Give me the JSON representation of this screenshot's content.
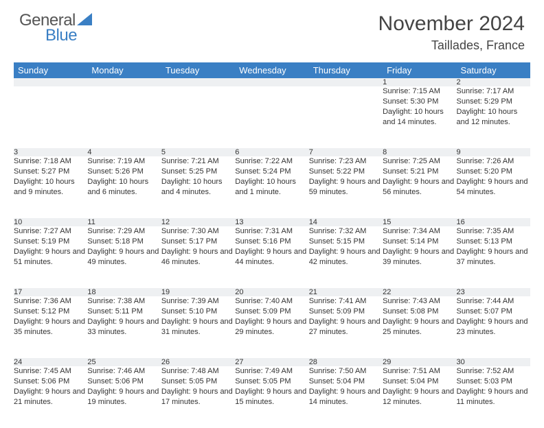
{
  "brand": {
    "part1": "General",
    "part2": "Blue"
  },
  "title": "November 2024",
  "subtitle": "Taillades, France",
  "colors": {
    "header_bg": "#3a7fc4",
    "header_fg": "#ffffff",
    "daynum_bg": "#eef0f2",
    "text": "#333333",
    "background": "#ffffff"
  },
  "day_headers": [
    "Sunday",
    "Monday",
    "Tuesday",
    "Wednesday",
    "Thursday",
    "Friday",
    "Saturday"
  ],
  "weeks": [
    [
      null,
      null,
      null,
      null,
      null,
      {
        "n": "1",
        "sr": "Sunrise: 7:15 AM",
        "ss": "Sunset: 5:30 PM",
        "dl": "Daylight: 10 hours and 14 minutes."
      },
      {
        "n": "2",
        "sr": "Sunrise: 7:17 AM",
        "ss": "Sunset: 5:29 PM",
        "dl": "Daylight: 10 hours and 12 minutes."
      }
    ],
    [
      {
        "n": "3",
        "sr": "Sunrise: 7:18 AM",
        "ss": "Sunset: 5:27 PM",
        "dl": "Daylight: 10 hours and 9 minutes."
      },
      {
        "n": "4",
        "sr": "Sunrise: 7:19 AM",
        "ss": "Sunset: 5:26 PM",
        "dl": "Daylight: 10 hours and 6 minutes."
      },
      {
        "n": "5",
        "sr": "Sunrise: 7:21 AM",
        "ss": "Sunset: 5:25 PM",
        "dl": "Daylight: 10 hours and 4 minutes."
      },
      {
        "n": "6",
        "sr": "Sunrise: 7:22 AM",
        "ss": "Sunset: 5:24 PM",
        "dl": "Daylight: 10 hours and 1 minute."
      },
      {
        "n": "7",
        "sr": "Sunrise: 7:23 AM",
        "ss": "Sunset: 5:22 PM",
        "dl": "Daylight: 9 hours and 59 minutes."
      },
      {
        "n": "8",
        "sr": "Sunrise: 7:25 AM",
        "ss": "Sunset: 5:21 PM",
        "dl": "Daylight: 9 hours and 56 minutes."
      },
      {
        "n": "9",
        "sr": "Sunrise: 7:26 AM",
        "ss": "Sunset: 5:20 PM",
        "dl": "Daylight: 9 hours and 54 minutes."
      }
    ],
    [
      {
        "n": "10",
        "sr": "Sunrise: 7:27 AM",
        "ss": "Sunset: 5:19 PM",
        "dl": "Daylight: 9 hours and 51 minutes."
      },
      {
        "n": "11",
        "sr": "Sunrise: 7:29 AM",
        "ss": "Sunset: 5:18 PM",
        "dl": "Daylight: 9 hours and 49 minutes."
      },
      {
        "n": "12",
        "sr": "Sunrise: 7:30 AM",
        "ss": "Sunset: 5:17 PM",
        "dl": "Daylight: 9 hours and 46 minutes."
      },
      {
        "n": "13",
        "sr": "Sunrise: 7:31 AM",
        "ss": "Sunset: 5:16 PM",
        "dl": "Daylight: 9 hours and 44 minutes."
      },
      {
        "n": "14",
        "sr": "Sunrise: 7:32 AM",
        "ss": "Sunset: 5:15 PM",
        "dl": "Daylight: 9 hours and 42 minutes."
      },
      {
        "n": "15",
        "sr": "Sunrise: 7:34 AM",
        "ss": "Sunset: 5:14 PM",
        "dl": "Daylight: 9 hours and 39 minutes."
      },
      {
        "n": "16",
        "sr": "Sunrise: 7:35 AM",
        "ss": "Sunset: 5:13 PM",
        "dl": "Daylight: 9 hours and 37 minutes."
      }
    ],
    [
      {
        "n": "17",
        "sr": "Sunrise: 7:36 AM",
        "ss": "Sunset: 5:12 PM",
        "dl": "Daylight: 9 hours and 35 minutes."
      },
      {
        "n": "18",
        "sr": "Sunrise: 7:38 AM",
        "ss": "Sunset: 5:11 PM",
        "dl": "Daylight: 9 hours and 33 minutes."
      },
      {
        "n": "19",
        "sr": "Sunrise: 7:39 AM",
        "ss": "Sunset: 5:10 PM",
        "dl": "Daylight: 9 hours and 31 minutes."
      },
      {
        "n": "20",
        "sr": "Sunrise: 7:40 AM",
        "ss": "Sunset: 5:09 PM",
        "dl": "Daylight: 9 hours and 29 minutes."
      },
      {
        "n": "21",
        "sr": "Sunrise: 7:41 AM",
        "ss": "Sunset: 5:09 PM",
        "dl": "Daylight: 9 hours and 27 minutes."
      },
      {
        "n": "22",
        "sr": "Sunrise: 7:43 AM",
        "ss": "Sunset: 5:08 PM",
        "dl": "Daylight: 9 hours and 25 minutes."
      },
      {
        "n": "23",
        "sr": "Sunrise: 7:44 AM",
        "ss": "Sunset: 5:07 PM",
        "dl": "Daylight: 9 hours and 23 minutes."
      }
    ],
    [
      {
        "n": "24",
        "sr": "Sunrise: 7:45 AM",
        "ss": "Sunset: 5:06 PM",
        "dl": "Daylight: 9 hours and 21 minutes."
      },
      {
        "n": "25",
        "sr": "Sunrise: 7:46 AM",
        "ss": "Sunset: 5:06 PM",
        "dl": "Daylight: 9 hours and 19 minutes."
      },
      {
        "n": "26",
        "sr": "Sunrise: 7:48 AM",
        "ss": "Sunset: 5:05 PM",
        "dl": "Daylight: 9 hours and 17 minutes."
      },
      {
        "n": "27",
        "sr": "Sunrise: 7:49 AM",
        "ss": "Sunset: 5:05 PM",
        "dl": "Daylight: 9 hours and 15 minutes."
      },
      {
        "n": "28",
        "sr": "Sunrise: 7:50 AM",
        "ss": "Sunset: 5:04 PM",
        "dl": "Daylight: 9 hours and 14 minutes."
      },
      {
        "n": "29",
        "sr": "Sunrise: 7:51 AM",
        "ss": "Sunset: 5:04 PM",
        "dl": "Daylight: 9 hours and 12 minutes."
      },
      {
        "n": "30",
        "sr": "Sunrise: 7:52 AM",
        "ss": "Sunset: 5:03 PM",
        "dl": "Daylight: 9 hours and 11 minutes."
      }
    ]
  ]
}
